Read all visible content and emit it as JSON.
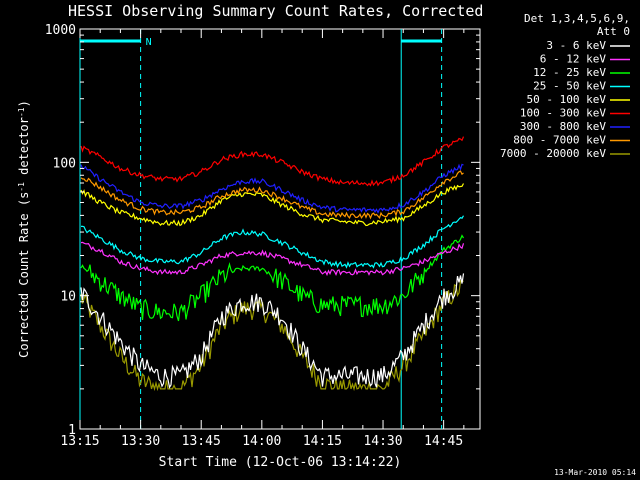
{
  "chart_data": {
    "type": "line",
    "title": "HESSI Observing Summary Count Rates, Corrected",
    "xlabel": "Start Time (12-Oct-06 13:14:22)",
    "ylabel_parts": [
      "Corrected Count Rate (s",
      "-1",
      " detector",
      "-1",
      ")"
    ],
    "yscale": "log",
    "ylim": [
      1,
      1000
    ],
    "xlim_minutes": [
      795,
      894
    ],
    "x_ticks": [
      {
        "m": 795,
        "label": "13:15"
      },
      {
        "m": 810,
        "label": "13:30"
      },
      {
        "m": 825,
        "label": "13:45"
      },
      {
        "m": 840,
        "label": "14:00"
      },
      {
        "m": 855,
        "label": "14:15"
      },
      {
        "m": 870,
        "label": "14:30"
      },
      {
        "m": 885,
        "label": "14:45"
      }
    ],
    "y_ticks": [
      {
        "v": 1,
        "label": "1"
      },
      {
        "v": 10,
        "label": "10"
      },
      {
        "v": 100,
        "label": "100"
      },
      {
        "v": 1000,
        "label": "1000"
      }
    ],
    "x_times_minutes": [
      795,
      800,
      805,
      810,
      815,
      820,
      825,
      830,
      835,
      840,
      845,
      850,
      855,
      860,
      865,
      870,
      875,
      880,
      885,
      890
    ],
    "legend_header": [
      "Det 1,3,4,5,6,9,",
      "Att 0"
    ],
    "series": [
      {
        "name": "3 - 6 keV",
        "color": "#ffffff",
        "values": [
          11,
          7,
          4.5,
          3,
          2.5,
          2.5,
          3.5,
          7,
          9,
          9,
          7,
          4,
          2.5,
          2.5,
          2.5,
          2.5,
          3.5,
          6,
          10,
          13
        ]
      },
      {
        "name": "6 - 12 keV",
        "color": "#ff33ff",
        "values": [
          25,
          22,
          18,
          16,
          15,
          15,
          17,
          20,
          21,
          21,
          19,
          17,
          15,
          15,
          15,
          15,
          16,
          18,
          21,
          24
        ]
      },
      {
        "name": "12 - 25 keV",
        "color": "#00ff00",
        "values": [
          17,
          13,
          10,
          8,
          7.5,
          7.5,
          10,
          14,
          16,
          16,
          13,
          10,
          8.5,
          8.5,
          8.5,
          8.5,
          10,
          15,
          22,
          28
        ]
      },
      {
        "name": "25 - 50 keV",
        "color": "#00ffff",
        "values": [
          33,
          27,
          22,
          19,
          18,
          18,
          21,
          27,
          30,
          29,
          25,
          21,
          18,
          17,
          17,
          17,
          19,
          24,
          32,
          40
        ]
      },
      {
        "name": "50 - 100 keV",
        "color": "#ffff00",
        "values": [
          62,
          50,
          42,
          38,
          35,
          35,
          40,
          52,
          58,
          57,
          48,
          41,
          37,
          36,
          35,
          36,
          38,
          47,
          60,
          68
        ]
      },
      {
        "name": "100 - 300 keV",
        "color": "#ff0000",
        "values": [
          130,
          110,
          90,
          80,
          75,
          75,
          85,
          105,
          115,
          115,
          100,
          85,
          75,
          70,
          70,
          70,
          80,
          100,
          130,
          150
        ]
      },
      {
        "name": "300 - 800 keV",
        "color": "#2020ff",
        "values": [
          95,
          75,
          60,
          50,
          47,
          47,
          52,
          63,
          72,
          72,
          62,
          52,
          46,
          44,
          44,
          44,
          48,
          60,
          80,
          95
        ]
      },
      {
        "name": "800 - 7000 keV",
        "color": "#ff9900",
        "values": [
          80,
          65,
          52,
          45,
          42,
          42,
          46,
          56,
          62,
          62,
          54,
          46,
          41,
          40,
          40,
          40,
          43,
          54,
          72,
          85
        ]
      },
      {
        "name": "7000 - 20000 keV",
        "color": "#999900",
        "values": [
          10,
          6,
          3.5,
          2.3,
          2,
          2,
          3,
          6,
          8,
          8,
          6,
          3.5,
          2.2,
          2,
          2,
          2,
          3,
          5,
          9,
          12
        ]
      }
    ],
    "vertical_lines": [
      {
        "m": 795,
        "style": "solid"
      },
      {
        "m": 810,
        "style": "dashed"
      },
      {
        "m": 874.5,
        "style": "solid"
      },
      {
        "m": 884.5,
        "style": "dashed"
      }
    ],
    "night_bars": [
      {
        "from": 795,
        "to": 810,
        "label": "N"
      },
      {
        "from": 874.5,
        "to": 884.5,
        "label": ""
      }
    ],
    "annotation_color": "#00ffff",
    "footer_date": "13-Mar-2010 05:14"
  }
}
